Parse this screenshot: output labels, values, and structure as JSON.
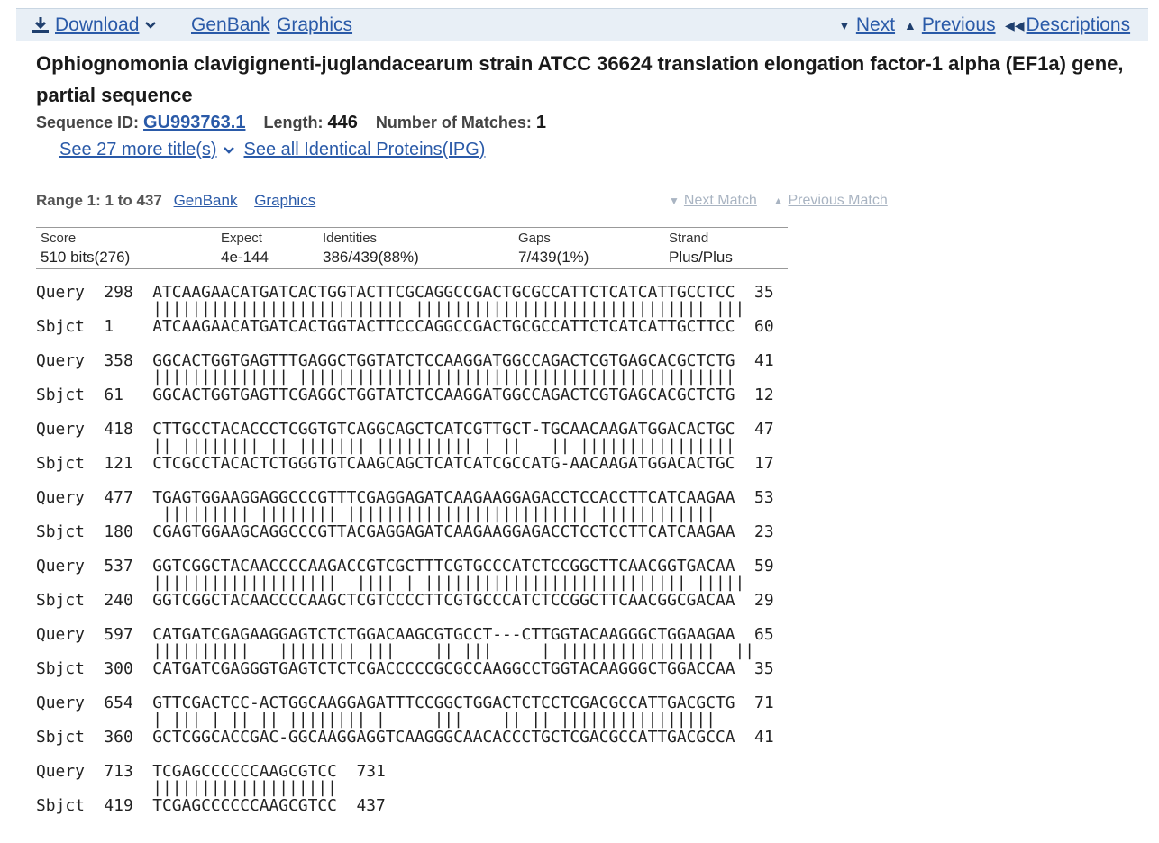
{
  "toolbar": {
    "download_label": "Download",
    "genbank_label": "GenBank",
    "graphics_label": "Graphics",
    "next_label": "Next",
    "previous_label": "Previous",
    "descriptions_label": "Descriptions"
  },
  "title": "Ophiognomonia clavigignenti-juglandacearum strain ATCC 36624 translation elongation factor-1 alpha (EF1a) gene, partial sequence",
  "sequence_info": {
    "sequence_id_label": "Sequence ID:",
    "sequence_id": "GU993763.1",
    "length_label": "Length:",
    "length": "446",
    "matches_label": "Number of Matches:",
    "matches": "1"
  },
  "more_titles": {
    "see_more_label": "See 27 more title(s)",
    "identical_proteins_label": "See all Identical Proteins(IPG)"
  },
  "range": {
    "label": "Range 1: 1 to 437",
    "genbank_label": "GenBank",
    "graphics_label": "Graphics",
    "next_match_label": "Next Match",
    "previous_match_label": "Previous Match"
  },
  "score_table": {
    "headers": [
      "Score",
      "Expect",
      "Identities",
      "Gaps",
      "Strand"
    ],
    "values": [
      "510 bits(276)",
      "4e-144",
      "386/439(88%)",
      "7/439(1%)",
      "Plus/Plus"
    ]
  },
  "alignment": [
    {
      "query": "Query  298  ATCAAGAACATGATCACTGGTACTTCGCAGGCCGACTGCGCCATTCTCATCATTGCCTCC  35",
      "match": "            |||||||||||||||||||||||||| |||||||||||||||||||||||||||||| |||",
      "sbjct": "Sbjct  1    ATCAAGAACATGATCACTGGTACTTCCCAGGCCGACTGCGCCATTCTCATCATTGCTTCC  60"
    },
    {
      "query": "Query  358  GGCACTGGTGAGTTTGAGGCTGGTATCTCCAAGGATGGCCAGACTCGTGAGCACGCTCTG  41",
      "match": "            |||||||||||||| |||||||||||||||||||||||||||||||||||||||||||||",
      "sbjct": "Sbjct  61   GGCACTGGTGAGTTCGAGGCTGGTATCTCCAAGGATGGCCAGACTCGTGAGCACGCTCTG  12"
    },
    {
      "query": "Query  418  CTTGCCTACACCCTCGGTGTCAGGCAGCTCATCGTTGCT-TGCAACAAGATGGACACTGC  47",
      "match": "            || |||||||| || ||||||| |||||||||| | ||   || ||||||||||||||||",
      "sbjct": "Sbjct  121  CTCGCCTACACTCTGGGTGTCAAGCAGCTCATCATCGCCATG-AACAAGATGGACACTGC  17"
    },
    {
      "query": "Query  477  TGAGTGGAAGGAGGCCCGTTTCGAGGAGATCAAGAAGGAGACCTCCACCTTCATCAAGAA  53",
      "match": "             ||||||||| |||||||| ||||||||||||||||||||||||| ||||||||||||",
      "sbjct": "Sbjct  180  CGAGTGGAAGCAGGCCCGTTACGAGGAGATCAAGAAGGAGACCTCCTCCTTCATCAAGAA  23"
    },
    {
      "query": "Query  537  GGTCGGCTACAACCCCAAGACCGTCGCTTTCGTGCCCATCTCCGGCTTCAACGGTGACAA  59",
      "match": "            |||||||||||||||||||  |||| | ||||||||||||||||||||||||||| |||||",
      "sbjct": "Sbjct  240  GGTCGGCTACAACCCCAAGCTCGTCCCCTTCGTGCCCATCTCCGGCTTCAACGGCGACAA  29"
    },
    {
      "query": "Query  597  CATGATCGAGAAGGAGTCTCTGGACAAGCGTGCCT---CTTGGTACAAGGGCTGGAAGAA  65",
      "match": "            ||||||||||   |||||||| |||    || |||     | ||||||||||||||||  ||",
      "sbjct": "Sbjct  300  CATGATCGAGGGTGAGTCTCTCGACCCCCGCGCCAAGGCCTGGTACAAGGGCTGGACCAA  35"
    },
    {
      "query": "Query  654  GTTCGACTCC-ACTGGCAAGGAGATTTCCGGCTGGACTCTCCTCGACGCCATTGACGCTG  71",
      "match": "            | ||| | || || |||||||| |     |||    || || ||||||||||||||||",
      "sbjct": "Sbjct  360  GCTCGGCACCGAC-GGCAAGGAGGTCAAGGGCAACACCCTGCTCGACGCCATTGACGCCA  41"
    },
    {
      "query": "Query  713  TCGAGCCCCCCAAGCGTCC  731",
      "match": "            |||||||||||||||||||",
      "sbjct": "Sbjct  419  TCGAGCCCCCCAAGCGTCC  437"
    }
  ],
  "colors": {
    "link": "#2a5aa8",
    "toolbar_bg": "#e8eff6",
    "disabled_link": "#a9b4c2"
  }
}
